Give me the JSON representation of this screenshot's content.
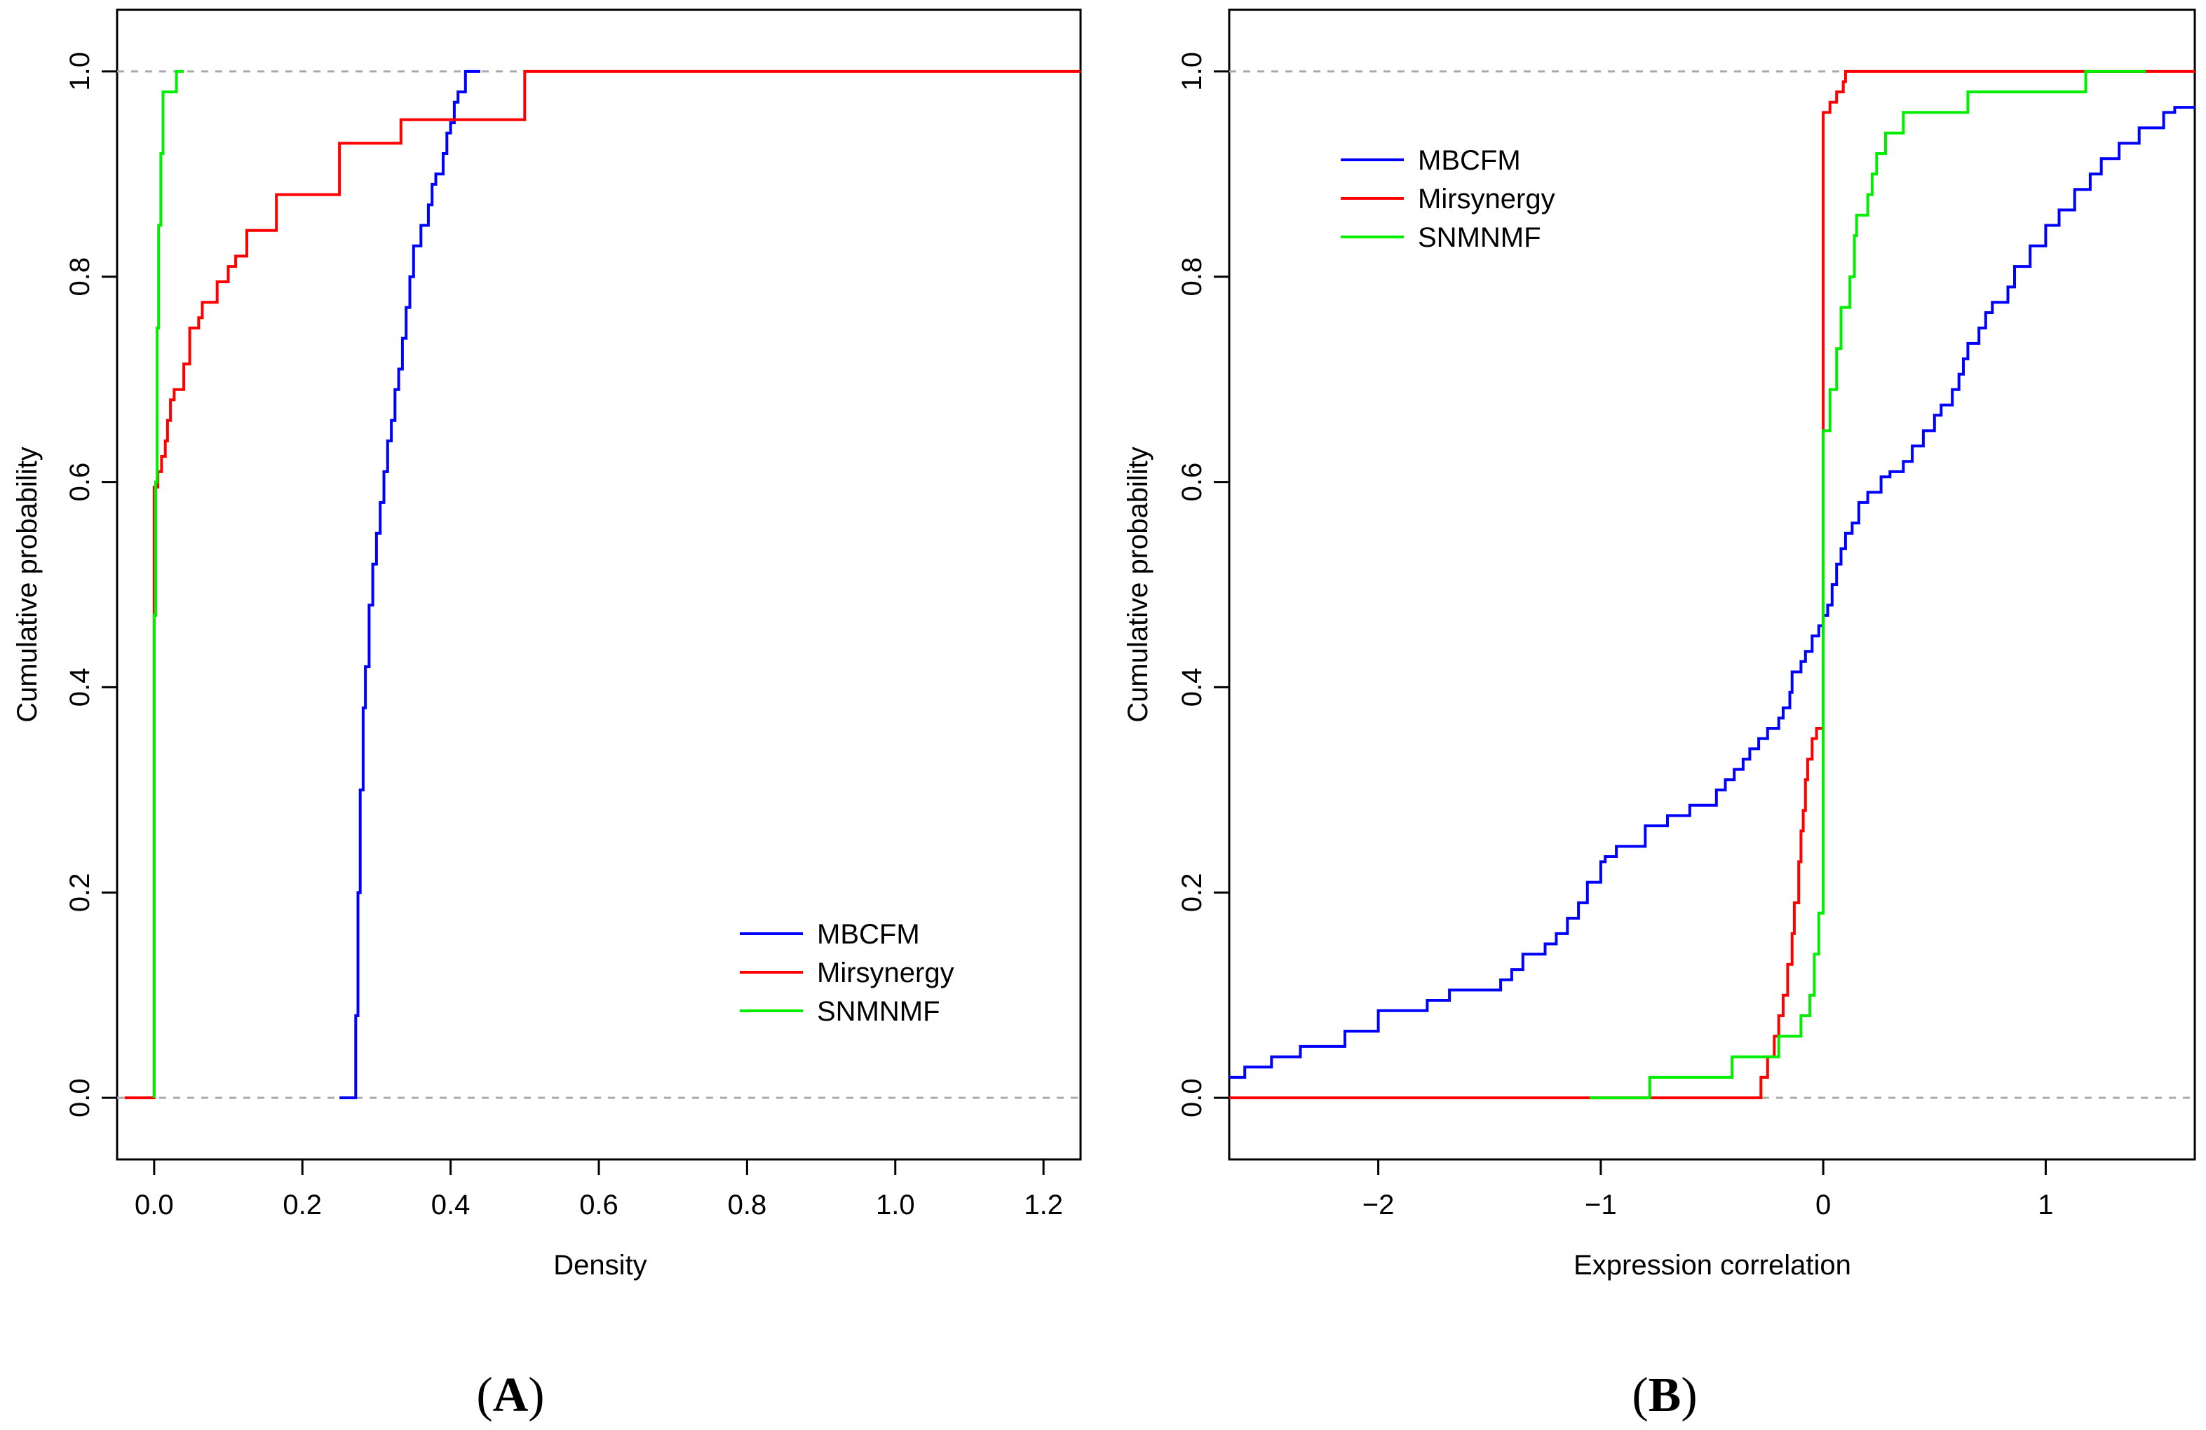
{
  "colors": {
    "MBCFM": "#0000ff",
    "Mirsynergy": "#ff0000",
    "SNMNMF": "#00ee00",
    "reference": "#aaaaaa",
    "axis": "#000000"
  },
  "chart_data": [
    {
      "panel": "A",
      "panel_label": "A",
      "type": "line",
      "subtype": "empirical-cdf-step",
      "xlabel": "Density",
      "ylabel": "Cumulative probability",
      "xlim": [
        -0.05,
        1.25
      ],
      "ylim": [
        -0.06,
        1.06
      ],
      "xticks": [
        0.0,
        0.2,
        0.4,
        0.6,
        0.8,
        1.0,
        1.2
      ],
      "xtick_labels": [
        "0.0",
        "0.2",
        "0.4",
        "0.6",
        "0.8",
        "1.0",
        "1.2"
      ],
      "yticks": [
        0.0,
        0.2,
        0.4,
        0.6,
        0.8,
        1.0
      ],
      "ytick_labels": [
        "0.0",
        "0.2",
        "0.4",
        "0.6",
        "0.8",
        "1.0"
      ],
      "reference_lines": [
        0.0,
        1.0
      ],
      "legend": {
        "position": "bottom-right",
        "entries": [
          "MBCFM",
          "Mirsynergy",
          "SNMNMF"
        ]
      },
      "series": [
        {
          "name": "MBCFM",
          "color_key": "MBCFM",
          "points": [
            [
              0.25,
              0.0
            ],
            [
              0.27,
              0.0
            ],
            [
              0.272,
              0.08
            ],
            [
              0.275,
              0.2
            ],
            [
              0.278,
              0.3
            ],
            [
              0.282,
              0.38
            ],
            [
              0.285,
              0.42
            ],
            [
              0.29,
              0.48
            ],
            [
              0.295,
              0.52
            ],
            [
              0.3,
              0.55
            ],
            [
              0.305,
              0.58
            ],
            [
              0.31,
              0.61
            ],
            [
              0.315,
              0.64
            ],
            [
              0.32,
              0.66
            ],
            [
              0.325,
              0.69
            ],
            [
              0.33,
              0.71
            ],
            [
              0.335,
              0.74
            ],
            [
              0.34,
              0.77
            ],
            [
              0.345,
              0.8
            ],
            [
              0.35,
              0.83
            ],
            [
              0.36,
              0.85
            ],
            [
              0.37,
              0.87
            ],
            [
              0.375,
              0.89
            ],
            [
              0.38,
              0.9
            ],
            [
              0.39,
              0.92
            ],
            [
              0.395,
              0.94
            ],
            [
              0.4,
              0.95
            ],
            [
              0.405,
              0.97
            ],
            [
              0.41,
              0.98
            ],
            [
              0.42,
              1.0
            ],
            [
              0.44,
              1.0
            ]
          ]
        },
        {
          "name": "Mirsynergy",
          "color_key": "Mirsynergy",
          "points": [
            [
              -0.04,
              0.0
            ],
            [
              0.0,
              0.0
            ],
            [
              0.0,
              0.47
            ],
            [
              0.0,
              0.595
            ],
            [
              0.005,
              0.61
            ],
            [
              0.01,
              0.625
            ],
            [
              0.015,
              0.64
            ],
            [
              0.018,
              0.66
            ],
            [
              0.022,
              0.68
            ],
            [
              0.027,
              0.69
            ],
            [
              0.04,
              0.715
            ],
            [
              0.048,
              0.75
            ],
            [
              0.06,
              0.76
            ],
            [
              0.065,
              0.775
            ],
            [
              0.085,
              0.795
            ],
            [
              0.1,
              0.81
            ],
            [
              0.11,
              0.82
            ],
            [
              0.125,
              0.845
            ],
            [
              0.165,
              0.88
            ],
            [
              0.25,
              0.93
            ],
            [
              0.333,
              0.953
            ],
            [
              0.5,
              1.0
            ],
            [
              1.25,
              1.0
            ]
          ]
        },
        {
          "name": "SNMNMF",
          "color_key": "SNMNMF",
          "points": [
            [
              0.0,
              0.0
            ],
            [
              0.0,
              0.47
            ],
            [
              0.002,
              0.6
            ],
            [
              0.004,
              0.75
            ],
            [
              0.006,
              0.85
            ],
            [
              0.009,
              0.92
            ],
            [
              0.012,
              0.98
            ],
            [
              0.03,
              1.0
            ],
            [
              0.04,
              1.0
            ]
          ]
        }
      ]
    },
    {
      "panel": "B",
      "panel_label": "B",
      "type": "line",
      "subtype": "empirical-cdf-step",
      "xlabel": "Expression correlation",
      "ylabel": "Cumulative probability",
      "xlim": [
        -2.67,
        1.67
      ],
      "ylim": [
        -0.06,
        1.06
      ],
      "xticks": [
        -2,
        -1,
        0,
        1
      ],
      "xtick_labels": [
        "−2",
        "−1",
        "0",
        "1"
      ],
      "yticks": [
        0.0,
        0.2,
        0.4,
        0.6,
        0.8,
        1.0
      ],
      "ytick_labels": [
        "0.0",
        "0.2",
        "0.4",
        "0.6",
        "0.8",
        "1.0"
      ],
      "reference_lines": [
        0.0,
        1.0
      ],
      "legend": {
        "position": "top-left",
        "entries": [
          "MBCFM",
          "Mirsynergy",
          "SNMNMF"
        ]
      },
      "series": [
        {
          "name": "MBCFM",
          "color_key": "MBCFM",
          "points": [
            [
              -2.67,
              0.02
            ],
            [
              -2.6,
              0.03
            ],
            [
              -2.48,
              0.04
            ],
            [
              -2.35,
              0.05
            ],
            [
              -2.15,
              0.065
            ],
            [
              -2.0,
              0.085
            ],
            [
              -1.78,
              0.095
            ],
            [
              -1.68,
              0.105
            ],
            [
              -1.45,
              0.115
            ],
            [
              -1.4,
              0.125
            ],
            [
              -1.35,
              0.14
            ],
            [
              -1.25,
              0.15
            ],
            [
              -1.2,
              0.16
            ],
            [
              -1.15,
              0.175
            ],
            [
              -1.1,
              0.19
            ],
            [
              -1.06,
              0.21
            ],
            [
              -1.0,
              0.23
            ],
            [
              -0.98,
              0.235
            ],
            [
              -0.93,
              0.245
            ],
            [
              -0.8,
              0.265
            ],
            [
              -0.7,
              0.275
            ],
            [
              -0.6,
              0.285
            ],
            [
              -0.48,
              0.3
            ],
            [
              -0.44,
              0.31
            ],
            [
              -0.4,
              0.32
            ],
            [
              -0.36,
              0.33
            ],
            [
              -0.33,
              0.34
            ],
            [
              -0.29,
              0.35
            ],
            [
              -0.25,
              0.36
            ],
            [
              -0.2,
              0.37
            ],
            [
              -0.18,
              0.38
            ],
            [
              -0.15,
              0.395
            ],
            [
              -0.14,
              0.415
            ],
            [
              -0.1,
              0.425
            ],
            [
              -0.08,
              0.435
            ],
            [
              -0.05,
              0.45
            ],
            [
              -0.02,
              0.46
            ],
            [
              0.0,
              0.47
            ],
            [
              0.02,
              0.48
            ],
            [
              0.04,
              0.5
            ],
            [
              0.06,
              0.52
            ],
            [
              0.08,
              0.535
            ],
            [
              0.1,
              0.55
            ],
            [
              0.13,
              0.56
            ],
            [
              0.16,
              0.58
            ],
            [
              0.2,
              0.59
            ],
            [
              0.26,
              0.605
            ],
            [
              0.3,
              0.61
            ],
            [
              0.36,
              0.62
            ],
            [
              0.4,
              0.635
            ],
            [
              0.45,
              0.65
            ],
            [
              0.5,
              0.665
            ],
            [
              0.53,
              0.675
            ],
            [
              0.58,
              0.69
            ],
            [
              0.61,
              0.705
            ],
            [
              0.63,
              0.72
            ],
            [
              0.65,
              0.735
            ],
            [
              0.7,
              0.75
            ],
            [
              0.73,
              0.765
            ],
            [
              0.76,
              0.775
            ],
            [
              0.83,
              0.79
            ],
            [
              0.86,
              0.81
            ],
            [
              0.93,
              0.83
            ],
            [
              1.0,
              0.85
            ],
            [
              1.06,
              0.865
            ],
            [
              1.13,
              0.885
            ],
            [
              1.2,
              0.9
            ],
            [
              1.25,
              0.915
            ],
            [
              1.33,
              0.93
            ],
            [
              1.42,
              0.945
            ],
            [
              1.53,
              0.96
            ],
            [
              1.58,
              0.965
            ],
            [
              1.67,
              0.965
            ]
          ]
        },
        {
          "name": "Mirsynergy",
          "color_key": "Mirsynergy",
          "points": [
            [
              -2.67,
              0.0
            ],
            [
              -0.3,
              0.0
            ],
            [
              -0.28,
              0.02
            ],
            [
              -0.25,
              0.04
            ],
            [
              -0.22,
              0.06
            ],
            [
              -0.2,
              0.08
            ],
            [
              -0.18,
              0.1
            ],
            [
              -0.16,
              0.13
            ],
            [
              -0.14,
              0.16
            ],
            [
              -0.13,
              0.19
            ],
            [
              -0.11,
              0.23
            ],
            [
              -0.1,
              0.26
            ],
            [
              -0.09,
              0.28
            ],
            [
              -0.08,
              0.31
            ],
            [
              -0.07,
              0.33
            ],
            [
              -0.05,
              0.35
            ],
            [
              -0.03,
              0.36
            ],
            [
              0.0,
              0.37
            ],
            [
              0.0,
              0.96
            ],
            [
              0.03,
              0.97
            ],
            [
              0.06,
              0.98
            ],
            [
              0.09,
              0.99
            ],
            [
              0.1,
              1.0
            ],
            [
              1.67,
              1.0
            ]
          ]
        },
        {
          "name": "SNMNMF",
          "color_key": "SNMNMF",
          "points": [
            [
              -1.05,
              0.0
            ],
            [
              -0.8,
              0.0
            ],
            [
              -0.78,
              0.02
            ],
            [
              -0.43,
              0.02
            ],
            [
              -0.41,
              0.04
            ],
            [
              -0.25,
              0.04
            ],
            [
              -0.2,
              0.06
            ],
            [
              -0.1,
              0.08
            ],
            [
              -0.06,
              0.1
            ],
            [
              -0.04,
              0.14
            ],
            [
              -0.02,
              0.18
            ],
            [
              0.0,
              0.2
            ],
            [
              0.0,
              0.65
            ],
            [
              0.03,
              0.69
            ],
            [
              0.06,
              0.73
            ],
            [
              0.08,
              0.77
            ],
            [
              0.12,
              0.8
            ],
            [
              0.14,
              0.84
            ],
            [
              0.15,
              0.86
            ],
            [
              0.2,
              0.88
            ],
            [
              0.22,
              0.9
            ],
            [
              0.24,
              0.92
            ],
            [
              0.28,
              0.94
            ],
            [
              0.36,
              0.96
            ],
            [
              0.65,
              0.98
            ],
            [
              1.18,
              1.0
            ],
            [
              1.45,
              1.0
            ]
          ]
        }
      ]
    }
  ]
}
